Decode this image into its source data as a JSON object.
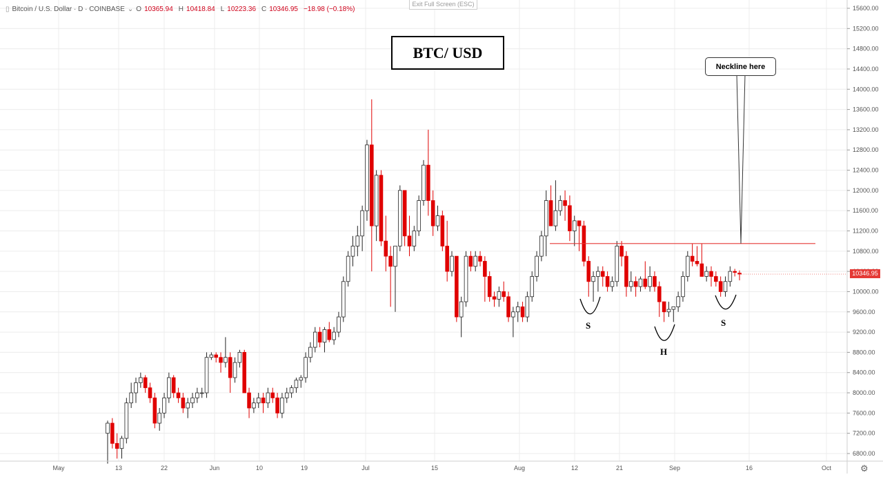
{
  "header": {
    "symbol": "Bitcoin / U.S. Dollar · D · COINBASE",
    "o_label": "O",
    "o_value": "10365.94",
    "h_label": "H",
    "h_value": "10418.84",
    "l_label": "L",
    "l_value": "10223.36",
    "c_label": "C",
    "c_value": "10346.95",
    "change": "−18.98 (−0.18%)",
    "exit_fullscreen": "Exit Full Screen (ESC)"
  },
  "annotations": {
    "title_box": "BTC/ USD",
    "neckline_callout": "Neckline here",
    "left_shoulder": "S",
    "head": "H",
    "right_shoulder": "S"
  },
  "last_price_label": "10346.95",
  "colors": {
    "up": "#ffffff",
    "down": "#e00000",
    "neckline": "#e53935",
    "grid": "#ececec"
  },
  "chart_data": {
    "type": "candlestick",
    "title": "BTC/ USD",
    "ylim": [
      6400,
      15800
    ],
    "y_ticks": [
      "6800.00",
      "7200.00",
      "7600.00",
      "8000.00",
      "8400.00",
      "8800.00",
      "9200.00",
      "9600.00",
      "10000.00",
      "10400.00",
      "10800.00",
      "11200.00",
      "11600.00",
      "12000.00",
      "12400.00",
      "12800.00",
      "13200.00",
      "13600.00",
      "14000.00",
      "14400.00",
      "14800.00",
      "15200.00",
      "15600.00"
    ],
    "x_ticks": [
      "May",
      "13",
      "22",
      "Jun",
      "10",
      "19",
      "Jul",
      "15",
      "Aug",
      "12",
      "21",
      "Sep",
      "16",
      "Oct"
    ],
    "neckline_price": 10950,
    "grid": true,
    "candles": [
      [
        7200,
        7450,
        6600,
        7400
      ],
      [
        7400,
        7500,
        6900,
        7000
      ],
      [
        7000,
        7200,
        6700,
        6900
      ],
      [
        6900,
        7150,
        6700,
        7100
      ],
      [
        7100,
        7900,
        7000,
        7800
      ],
      [
        7800,
        8200,
        7700,
        8000
      ],
      [
        8000,
        8300,
        7800,
        8200
      ],
      [
        8200,
        8400,
        8100,
        8300
      ],
      [
        8300,
        8350,
        8000,
        8100
      ],
      [
        8100,
        8200,
        7800,
        7900
      ],
      [
        7900,
        8000,
        7300,
        7400
      ],
      [
        7400,
        7700,
        7250,
        7600
      ],
      [
        7600,
        8000,
        7500,
        7900
      ],
      [
        7900,
        8400,
        7800,
        8300
      ],
      [
        8300,
        8350,
        7900,
        8000
      ],
      [
        8000,
        8100,
        7800,
        7900
      ],
      [
        7900,
        8000,
        7600,
        7700
      ],
      [
        7700,
        7900,
        7500,
        7800
      ],
      [
        7800,
        8000,
        7700,
        7900
      ],
      [
        7900,
        8100,
        7800,
        8000
      ],
      [
        8000,
        8100,
        7900,
        8000
      ],
      [
        8000,
        8800,
        7900,
        8700
      ],
      [
        8700,
        8800,
        8650,
        8750
      ],
      [
        8750,
        8800,
        8600,
        8700
      ],
      [
        8700,
        8800,
        8400,
        8600
      ],
      [
        8600,
        9100,
        8500,
        8700
      ],
      [
        8700,
        8800,
        8000,
        8300
      ],
      [
        8300,
        8700,
        8200,
        8600
      ],
      [
        8600,
        8850,
        8500,
        8800
      ],
      [
        8800,
        8850,
        8000,
        8000
      ],
      [
        8000,
        8100,
        7500,
        7700
      ],
      [
        7700,
        7900,
        7600,
        7800
      ],
      [
        7800,
        8000,
        7700,
        7900
      ],
      [
        7900,
        8000,
        7600,
        7800
      ],
      [
        7800,
        8100,
        7700,
        8000
      ],
      [
        8000,
        8100,
        7800,
        7900
      ],
      [
        7900,
        8000,
        7500,
        7600
      ],
      [
        7600,
        8000,
        7500,
        7900
      ],
      [
        7900,
        8100,
        7800,
        8000
      ],
      [
        8000,
        8150,
        7900,
        8100
      ],
      [
        8100,
        8300,
        8000,
        8250
      ],
      [
        8250,
        8350,
        8100,
        8300
      ],
      [
        8300,
        8800,
        8200,
        8700
      ],
      [
        8700,
        9000,
        8600,
        8900
      ],
      [
        8900,
        9300,
        8800,
        9200
      ],
      [
        9200,
        9300,
        8900,
        9000
      ],
      [
        9000,
        9300,
        8800,
        9250
      ],
      [
        9250,
        9400,
        9000,
        9050
      ],
      [
        9050,
        9300,
        8950,
        9200
      ],
      [
        9200,
        9600,
        9100,
        9500
      ],
      [
        9500,
        10300,
        9400,
        10200
      ],
      [
        10200,
        10800,
        10100,
        10700
      ],
      [
        10700,
        11100,
        10500,
        10900
      ],
      [
        10900,
        11300,
        10700,
        11100
      ],
      [
        11100,
        11700,
        10800,
        11600
      ],
      [
        11600,
        13000,
        11400,
        12900
      ],
      [
        12900,
        13800,
        10400,
        11300
      ],
      [
        11300,
        12400,
        11000,
        12300
      ],
      [
        12300,
        12400,
        10900,
        11000
      ],
      [
        11000,
        11500,
        10400,
        10700
      ],
      [
        10700,
        10900,
        9700,
        10500
      ],
      [
        10500,
        10900,
        9600,
        10900
      ],
      [
        10900,
        12100,
        10800,
        12000
      ],
      [
        12000,
        12000,
        10900,
        11100
      ],
      [
        11100,
        11500,
        10700,
        10900
      ],
      [
        10900,
        11300,
        10800,
        11200
      ],
      [
        11200,
        11900,
        11100,
        11800
      ],
      [
        11800,
        12600,
        11700,
        12500
      ],
      [
        12500,
        13200,
        11500,
        11800
      ],
      [
        11800,
        12000,
        11100,
        11300
      ],
      [
        11300,
        11700,
        11200,
        11500
      ],
      [
        11500,
        11600,
        10800,
        10900
      ],
      [
        10900,
        11400,
        10200,
        10400
      ],
      [
        10400,
        10800,
        10300,
        10700
      ],
      [
        10700,
        10700,
        9400,
        9500
      ],
      [
        9500,
        9900,
        9100,
        9800
      ],
      [
        9800,
        10800,
        9700,
        10700
      ],
      [
        10700,
        10800,
        10400,
        10500
      ],
      [
        10500,
        10800,
        10400,
        10700
      ],
      [
        10700,
        10800,
        10500,
        10600
      ],
      [
        10600,
        10700,
        9800,
        10300
      ],
      [
        10300,
        10400,
        9800,
        9900
      ],
      [
        9900,
        10000,
        9700,
        9850
      ],
      [
        9850,
        10100,
        9700,
        10000
      ],
      [
        10000,
        10200,
        9800,
        9900
      ],
      [
        9900,
        10000,
        9400,
        9500
      ],
      [
        9500,
        9700,
        9100,
        9600
      ],
      [
        9600,
        9800,
        9400,
        9700
      ],
      [
        9700,
        9800,
        9400,
        9500
      ],
      [
        9500,
        10000,
        9400,
        9900
      ],
      [
        9900,
        10400,
        9800,
        10300
      ],
      [
        10300,
        10800,
        10200,
        10700
      ],
      [
        10700,
        11200,
        10600,
        11100
      ],
      [
        11100,
        12000,
        10700,
        11800
      ],
      [
        11800,
        12100,
        11300,
        11300
      ],
      [
        11300,
        12200,
        11200,
        11600
      ],
      [
        11600,
        11900,
        11500,
        11800
      ],
      [
        11800,
        12000,
        11400,
        11700
      ],
      [
        11700,
        11900,
        11000,
        11200
      ],
      [
        11200,
        11500,
        10900,
        11400
      ],
      [
        11400,
        11400,
        10800,
        11300
      ],
      [
        11300,
        11400,
        10500,
        10600
      ],
      [
        10600,
        10700,
        9900,
        10200
      ],
      [
        10200,
        10400,
        9800,
        10300
      ],
      [
        10300,
        10500,
        10000,
        10400
      ],
      [
        10400,
        10500,
        10100,
        10300
      ],
      [
        10300,
        10400,
        10000,
        10100
      ],
      [
        10100,
        10300,
        10000,
        10200
      ],
      [
        10200,
        11000,
        10100,
        10900
      ],
      [
        10900,
        11000,
        10500,
        10700
      ],
      [
        10700,
        10800,
        9900,
        10100
      ],
      [
        10100,
        10400,
        10000,
        10200
      ],
      [
        10200,
        10300,
        9900,
        10100
      ],
      [
        10100,
        10300,
        10000,
        10250
      ],
      [
        10250,
        10600,
        10050,
        10100
      ],
      [
        10100,
        10500,
        10000,
        10300
      ],
      [
        10300,
        10400,
        10000,
        10100
      ],
      [
        10100,
        10200,
        9500,
        9800
      ],
      [
        9800,
        9800,
        9400,
        9600
      ],
      [
        9600,
        9800,
        9500,
        9650
      ],
      [
        9650,
        9700,
        9400,
        9700
      ],
      [
        9700,
        10000,
        9600,
        9900
      ],
      [
        9900,
        10400,
        9800,
        10300
      ],
      [
        10300,
        10800,
        10200,
        10700
      ],
      [
        10700,
        10950,
        10500,
        10600
      ],
      [
        10600,
        10900,
        10500,
        10550
      ],
      [
        10550,
        10950,
        10300,
        10300
      ],
      [
        10300,
        10500,
        10200,
        10400
      ],
      [
        10400,
        10500,
        10100,
        10300
      ],
      [
        10300,
        10400,
        10100,
        10200
      ],
      [
        10200,
        10300,
        9900,
        10000
      ],
      [
        10000,
        10300,
        9900,
        10200
      ],
      [
        10200,
        10500,
        10100,
        10400
      ],
      [
        10400,
        10450,
        10300,
        10380
      ],
      [
        10366,
        10419,
        10223,
        10347
      ]
    ]
  }
}
